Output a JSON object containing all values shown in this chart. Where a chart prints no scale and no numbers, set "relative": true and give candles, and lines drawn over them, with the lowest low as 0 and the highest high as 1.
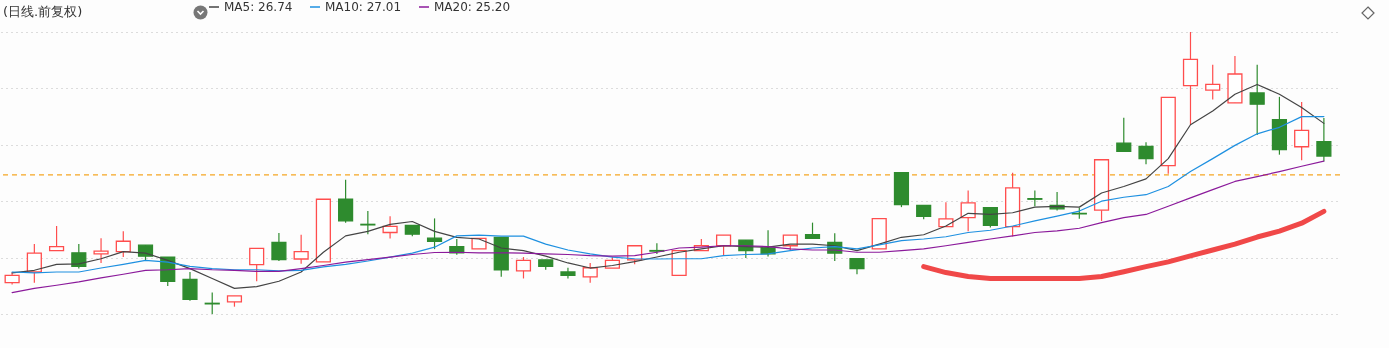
{
  "chart_data": {
    "type": "candlestick",
    "title": "(日线.前复权)",
    "relative": true,
    "grid": "y",
    "legend": "top left",
    "categories": [
      null,
      null,
      null,
      null,
      null,
      null,
      null,
      null,
      null,
      null,
      null,
      null,
      null,
      null,
      null,
      null,
      null,
      null,
      null,
      null,
      null,
      null,
      null,
      null,
      null,
      null,
      null,
      null,
      null,
      null,
      null,
      null,
      null,
      null,
      null,
      null,
      null,
      null,
      null,
      null,
      null,
      null,
      null,
      null,
      null,
      null,
      null,
      null,
      null,
      null,
      null,
      null,
      null,
      null,
      null,
      null,
      null,
      null,
      null,
      null
    ],
    "ohlc": [
      [
        0.111,
        0.147,
        0.105,
        0.137
      ],
      [
        0.149,
        0.248,
        0.111,
        0.216
      ],
      [
        0.225,
        0.312,
        0.225,
        0.239
      ],
      [
        0.217,
        0.248,
        0.161,
        0.169
      ],
      [
        0.213,
        0.269,
        0.181,
        0.223
      ],
      [
        0.221,
        0.293,
        0.202,
        0.258
      ],
      [
        0.244,
        0.244,
        0.19,
        0.205
      ],
      [
        0.202,
        0.202,
        0.099,
        0.116
      ],
      [
        0.123,
        0.149,
        0.047,
        0.052
      ],
      [
        0.038,
        0.076,
        0,
        0.036
      ],
      [
        0.043,
        0.064,
        0.026,
        0.064
      ],
      [
        0.175,
        0.233,
        0.116,
        0.233
      ],
      [
        0.254,
        0.287,
        0.188,
        0.193
      ],
      [
        0.195,
        0.281,
        0.178,
        0.221
      ],
      [
        0.185,
        0.407,
        0.185,
        0.407
      ],
      [
        0.407,
        0.476,
        0.324,
        0.33
      ],
      [
        0.318,
        0.365,
        0.283,
        0.316
      ],
      [
        0.289,
        0.347,
        0.268,
        0.311
      ],
      [
        0.314,
        0.314,
        0.276,
        0.283
      ],
      [
        0.269,
        0.339,
        0.23,
        0.258
      ],
      [
        0.239,
        0.266,
        0.21,
        0.217
      ],
      [
        0.231,
        0.268,
        0.231,
        0.268
      ],
      [
        0.272,
        0.272,
        0.132,
        0.157
      ],
      [
        0.153,
        0.202,
        0.126,
        0.19
      ],
      [
        0.192,
        0.192,
        0.157,
        0.169
      ],
      [
        0.149,
        0.164,
        0.126,
        0.137
      ],
      [
        0.132,
        0.181,
        0.111,
        0.164
      ],
      [
        0.163,
        0.202,
        0.163,
        0.19
      ],
      [
        0.192,
        0.242,
        0.176,
        0.242
      ],
      [
        0.225,
        0.251,
        0.213,
        0.223
      ],
      [
        0.137,
        0.225,
        0.137,
        0.225
      ],
      [
        0.225,
        0.266,
        0.225,
        0.242
      ],
      [
        0.242,
        0.28,
        0.207,
        0.28
      ],
      [
        0.262,
        0.262,
        0.199,
        0.225
      ],
      [
        0.234,
        0.297,
        0.204,
        0.213
      ],
      [
        0.242,
        0.28,
        0.227,
        0.28
      ],
      [
        0.281,
        0.324,
        0.268,
        0.268
      ],
      [
        0.254,
        0.286,
        0.188,
        0.216
      ],
      [
        0.196,
        0.196,
        0.141,
        0.161
      ],
      [
        0.231,
        0.338,
        0.231,
        0.338
      ],
      [
        0.501,
        0.501,
        0.379,
        0.388
      ],
      [
        0.385,
        0.385,
        0.336,
        0.346
      ],
      [
        0.31,
        0.396,
        0.31,
        0.337
      ],
      [
        0.342,
        0.438,
        0.293,
        0.394
      ],
      [
        0.377,
        0.377,
        0.307,
        0.314
      ],
      [
        0.31,
        0.501,
        0.275,
        0.447
      ],
      [
        0.409,
        0.438,
        0.382,
        0.407
      ],
      [
        0.385,
        0.433,
        0.367,
        0.373
      ],
      [
        0.357,
        0.377,
        0.338,
        0.355
      ],
      [
        0.368,
        0.547,
        0.33,
        0.547
      ],
      [
        0.606,
        0.696,
        0.577,
        0.577
      ],
      [
        0.594,
        0.609,
        0.531,
        0.551
      ],
      [
        0.526,
        0.768,
        0.497,
        0.768
      ],
      [
        0.81,
        1,
        0.671,
        0.903
      ],
      [
        0.794,
        0.884,
        0.761,
        0.814
      ],
      [
        0.749,
        0.915,
        0.749,
        0.851
      ],
      [
        0.784,
        0.884,
        0.635,
        0.744
      ],
      [
        0.689,
        0.77,
        0.565,
        0.583
      ],
      [
        0.593,
        0.752,
        0.545,
        0.651
      ],
      [
        0.611,
        0.695,
        0.542,
        0.56
      ]
    ],
    "colors": [
      "#ff4d4d",
      "#ff4d4d",
      "#ff4d4d",
      "#2e8b2e",
      "#ff4d4d",
      "#ff4d4d",
      "#2e8b2e",
      "#2e8b2e",
      "#2e8b2e",
      "#2e8b2e",
      "#ff4d4d",
      "#ff4d4d",
      "#2e8b2e",
      "#ff4d4d",
      "#ff4d4d",
      "#2e8b2e",
      "#2e8b2e",
      "#ff4d4d",
      "#2e8b2e",
      "#2e8b2e",
      "#2e8b2e",
      "#ff4d4d",
      "#2e8b2e",
      "#ff4d4d",
      "#2e8b2e",
      "#2e8b2e",
      "#ff4d4d",
      "#ff4d4d",
      "#ff4d4d",
      "#2e8b2e",
      "#ff4d4d",
      "#ff4d4d",
      "#ff4d4d",
      "#2e8b2e",
      "#2e8b2e",
      "#ff4d4d",
      "#2e8b2e",
      "#2e8b2e",
      "#2e8b2e",
      "#ff4d4d",
      "#2e8b2e",
      "#2e8b2e",
      "#ff4d4d",
      "#ff4d4d",
      "#2e8b2e",
      "#ff4d4d",
      "#2e8b2e",
      "#2e8b2e",
      "#2e8b2e",
      "#ff4d4d",
      "#2e8b2e",
      "#2e8b2e",
      "#ff4d4d",
      "#ff4d4d",
      "#ff4d4d",
      "#ff4d4d",
      "#2e8b2e",
      "#2e8b2e",
      "#ff4d4d",
      "#2e8b2e"
    ],
    "series": [
      {
        "name": "MA5: 26.74",
        "type": "line",
        "color": "#444444",
        "values": [
          0.146,
          0.155,
          0.176,
          0.178,
          0.196,
          0.221,
          0.216,
          0.19,
          0.161,
          0.126,
          0.091,
          0.097,
          0.116,
          0.149,
          0.219,
          0.277,
          0.293,
          0.318,
          0.328,
          0.293,
          0.272,
          0.266,
          0.234,
          0.225,
          0.205,
          0.181,
          0.163,
          0.172,
          0.186,
          0.202,
          0.219,
          0.231,
          0.242,
          0.239,
          0.237,
          0.248,
          0.248,
          0.242,
          0.225,
          0.248,
          0.272,
          0.281,
          0.312,
          0.357,
          0.353,
          0.359,
          0.379,
          0.382,
          0.379,
          0.429,
          0.452,
          0.479,
          0.551,
          0.671,
          0.72,
          0.779,
          0.814,
          0.779,
          0.732,
          0.676
        ]
      },
      {
        "name": "MA10: 27.01",
        "type": "line",
        "color": "#1e90e0",
        "values": [
          0.149,
          0.146,
          0.149,
          0.149,
          0.163,
          0.176,
          0.19,
          0.184,
          0.169,
          0.161,
          0.157,
          0.157,
          0.153,
          0.155,
          0.167,
          0.176,
          0.188,
          0.202,
          0.216,
          0.237,
          0.277,
          0.28,
          0.276,
          0.276,
          0.248,
          0.227,
          0.213,
          0.202,
          0.196,
          0.195,
          0.196,
          0.196,
          0.207,
          0.211,
          0.213,
          0.225,
          0.234,
          0.239,
          0.231,
          0.245,
          0.26,
          0.266,
          0.274,
          0.289,
          0.297,
          0.312,
          0.33,
          0.347,
          0.365,
          0.4,
          0.414,
          0.423,
          0.452,
          0.505,
          0.551,
          0.598,
          0.639,
          0.662,
          0.7,
          0.7
        ]
      },
      {
        "name": "MA20: 25.20",
        "type": "line",
        "color": "#8b1a9b",
        "values": [
          0.076,
          0.091,
          0.102,
          0.114,
          0.128,
          0.141,
          0.155,
          0.157,
          0.161,
          0.157,
          0.155,
          0.151,
          0.151,
          0.161,
          0.172,
          0.184,
          0.193,
          0.202,
          0.211,
          0.218,
          0.219,
          0.217,
          0.217,
          0.216,
          0.213,
          0.211,
          0.207,
          0.205,
          0.207,
          0.219,
          0.234,
          0.237,
          0.242,
          0.242,
          0.239,
          0.231,
          0.227,
          0.227,
          0.219,
          0.219,
          0.225,
          0.231,
          0.242,
          0.254,
          0.266,
          0.277,
          0.289,
          0.295,
          0.304,
          0.324,
          0.342,
          0.353,
          0.382,
          0.412,
          0.441,
          0.47,
          0.487,
          0.505,
          0.524,
          0.542
        ]
      },
      {
        "type": "line",
        "color": "#f04848",
        "values": [
          null,
          null,
          null,
          null,
          null,
          null,
          null,
          null,
          null,
          null,
          null,
          null,
          null,
          null,
          null,
          null,
          null,
          null,
          null,
          null,
          null,
          null,
          null,
          null,
          null,
          null,
          null,
          null,
          null,
          null,
          null,
          null,
          null,
          null,
          null,
          null,
          null,
          null,
          null,
          null,
          null,
          0.168,
          0.147,
          0.133,
          0.126,
          0.126,
          0.126,
          0.126,
          0.126,
          0.133,
          0.15,
          0.168,
          0.185,
          0.206,
          0.227,
          0.248,
          0.273,
          0.294,
          0.322,
          0.364
        ]
      }
    ],
    "ref_lines": [
      {
        "axis": "y",
        "value": 0.493,
        "color": "#f5a623",
        "line_style": "dashed"
      }
    ]
  }
}
